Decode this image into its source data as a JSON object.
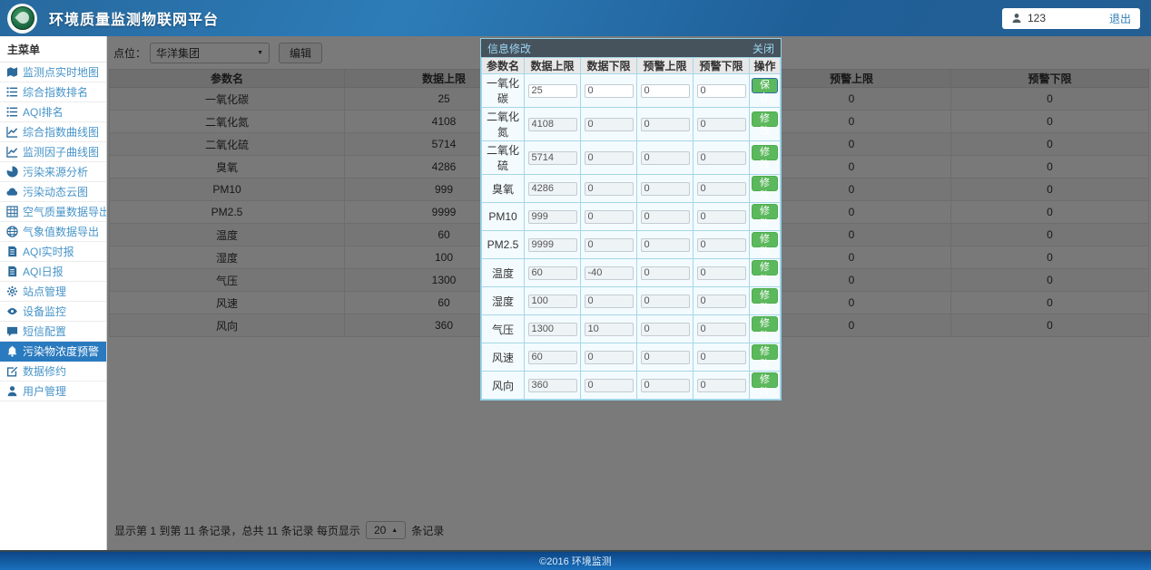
{
  "colors": {
    "header_blue": "#2d7cb8",
    "sidebar_link": "#4794c9",
    "active_item_bg": "#2a7abf",
    "modal_header_bg": "#46525c",
    "modal_border": "#8ecfe4",
    "button_green": "#5cb85c",
    "footer_blue": "#1a70bd"
  },
  "header": {
    "title": "环境质量监测物联网平台",
    "username": "123",
    "logout_label": "退出"
  },
  "sidebar": {
    "menu_title": "主菜单",
    "items": [
      {
        "label": "监测点实时地图",
        "icon": "map-icon",
        "active": false
      },
      {
        "label": "综合指数排名",
        "icon": "ranking-list-icon",
        "active": false
      },
      {
        "label": "AQI排名",
        "icon": "ranking-list-icon",
        "active": false
      },
      {
        "label": "综合指数曲线图",
        "icon": "line-chart-icon",
        "active": false
      },
      {
        "label": "监测因子曲线图",
        "icon": "line-chart-icon",
        "active": false
      },
      {
        "label": "污染来源分析",
        "icon": "pie-chart-icon",
        "active": false
      },
      {
        "label": "污染动态云图",
        "icon": "cloud-icon",
        "active": false
      },
      {
        "label": "空气质量数据导出",
        "icon": "table-icon",
        "active": false
      },
      {
        "label": "气象值数据导出",
        "icon": "globe-icon",
        "active": false
      },
      {
        "label": "AQI实时报",
        "icon": "report-icon",
        "active": false
      },
      {
        "label": "AQI日报",
        "icon": "report-icon",
        "active": false
      },
      {
        "label": "站点管理",
        "icon": "gear-icon",
        "active": false
      },
      {
        "label": "设备监控",
        "icon": "eye-icon",
        "active": false
      },
      {
        "label": "短信配置",
        "icon": "comment-icon",
        "active": false
      },
      {
        "label": "污染物浓度预警",
        "icon": "bell-icon",
        "active": true
      },
      {
        "label": "数据修约",
        "icon": "edit-icon",
        "active": false
      },
      {
        "label": "用户管理",
        "icon": "user-icon",
        "active": false
      }
    ]
  },
  "toolbar": {
    "site_label": "点位：",
    "site_value": "华洋集团",
    "edit_button": "编辑"
  },
  "table": {
    "columns": [
      "参数名",
      "数据上限",
      "数据下限",
      "预警上限",
      "预警下限"
    ],
    "rows": [
      {
        "name": "一氧化碳",
        "upper": "25",
        "lower": "0",
        "warn_upper": "0",
        "warn_lower": "0"
      },
      {
        "name": "二氧化氮",
        "upper": "4108",
        "lower": "0",
        "warn_upper": "0",
        "warn_lower": "0"
      },
      {
        "name": "二氧化硫",
        "upper": "5714",
        "lower": "0",
        "warn_upper": "0",
        "warn_lower": "0"
      },
      {
        "name": "臭氧",
        "upper": "4286",
        "lower": "0",
        "warn_upper": "0",
        "warn_lower": "0"
      },
      {
        "name": "PM10",
        "upper": "999",
        "lower": "0",
        "warn_upper": "0",
        "warn_lower": "0"
      },
      {
        "name": "PM2.5",
        "upper": "9999",
        "lower": "0",
        "warn_upper": "0",
        "warn_lower": "0"
      },
      {
        "name": "温度",
        "upper": "60",
        "lower": "-40",
        "warn_upper": "0",
        "warn_lower": "0"
      },
      {
        "name": "湿度",
        "upper": "100",
        "lower": "0",
        "warn_upper": "0",
        "warn_lower": "0"
      },
      {
        "name": "气压",
        "upper": "1300",
        "lower": "10",
        "warn_upper": "0",
        "warn_lower": "0"
      },
      {
        "name": "风速",
        "upper": "60",
        "lower": "0",
        "warn_upper": "0",
        "warn_lower": "0"
      },
      {
        "name": "风向",
        "upper": "360",
        "lower": "0",
        "warn_upper": "0",
        "warn_lower": "0"
      }
    ]
  },
  "pagination": {
    "summary": "显示第 1 到第 11 条记录，总共 11 条记录 每页显示",
    "page_size": "20",
    "suffix": "条记录"
  },
  "modal": {
    "title": "信息修改",
    "close_label": "关闭",
    "columns": [
      "参数名",
      "数据上限",
      "数据下限",
      "预警上限",
      "预警下限",
      "操作"
    ],
    "save_label": "保存",
    "modify_label": "修改",
    "rows": [
      {
        "name": "一氧化碳",
        "upper": "25",
        "lower": "0",
        "warn_upper": "0",
        "warn_lower": "0",
        "action": "保存",
        "editing": true
      },
      {
        "name": "二氧化氮",
        "upper": "4108",
        "lower": "0",
        "warn_upper": "0",
        "warn_lower": "0",
        "action": "修改",
        "editing": false
      },
      {
        "name": "二氧化硫",
        "upper": "5714",
        "lower": "0",
        "warn_upper": "0",
        "warn_lower": "0",
        "action": "修改",
        "editing": false
      },
      {
        "name": "臭氧",
        "upper": "4286",
        "lower": "0",
        "warn_upper": "0",
        "warn_lower": "0",
        "action": "修改",
        "editing": false
      },
      {
        "name": "PM10",
        "upper": "999",
        "lower": "0",
        "warn_upper": "0",
        "warn_lower": "0",
        "action": "修改",
        "editing": false
      },
      {
        "name": "PM2.5",
        "upper": "9999",
        "lower": "0",
        "warn_upper": "0",
        "warn_lower": "0",
        "action": "修改",
        "editing": false
      },
      {
        "name": "温度",
        "upper": "60",
        "lower": "-40",
        "warn_upper": "0",
        "warn_lower": "0",
        "action": "修改",
        "editing": false
      },
      {
        "name": "湿度",
        "upper": "100",
        "lower": "0",
        "warn_upper": "0",
        "warn_lower": "0",
        "action": "修改",
        "editing": false
      },
      {
        "name": "气压",
        "upper": "1300",
        "lower": "10",
        "warn_upper": "0",
        "warn_lower": "0",
        "action": "修改",
        "editing": false
      },
      {
        "name": "风速",
        "upper": "60",
        "lower": "0",
        "warn_upper": "0",
        "warn_lower": "0",
        "action": "修改",
        "editing": false
      },
      {
        "name": "风向",
        "upper": "360",
        "lower": "0",
        "warn_upper": "0",
        "warn_lower": "0",
        "action": "修改",
        "editing": false
      }
    ]
  },
  "footer": {
    "copyright": "©2016 环境监测"
  }
}
